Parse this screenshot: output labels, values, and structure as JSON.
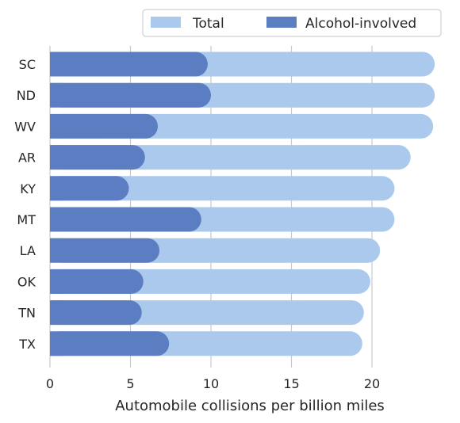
{
  "chart_data": {
    "type": "bar",
    "orientation": "horizontal",
    "categories": [
      "SC",
      "ND",
      "WV",
      "AR",
      "KY",
      "MT",
      "LA",
      "OK",
      "TN",
      "TX"
    ],
    "series": [
      {
        "name": "Total",
        "color": "#abc9ed",
        "values": [
          23.9,
          23.9,
          23.8,
          22.4,
          21.4,
          21.4,
          20.5,
          19.9,
          19.5,
          19.4
        ]
      },
      {
        "name": "Alcohol-involved",
        "color": "#5b7ec2",
        "values": [
          9.8,
          10.0,
          6.7,
          5.9,
          4.9,
          9.4,
          6.8,
          5.8,
          5.7,
          7.4
        ]
      }
    ],
    "xlabel": "Automobile collisions per billion miles",
    "xlim": [
      0,
      24
    ],
    "xticks": [
      0,
      5,
      10,
      15,
      20
    ],
    "grid": "vertical",
    "legend_position": "top-right",
    "legend_columns": 2
  }
}
